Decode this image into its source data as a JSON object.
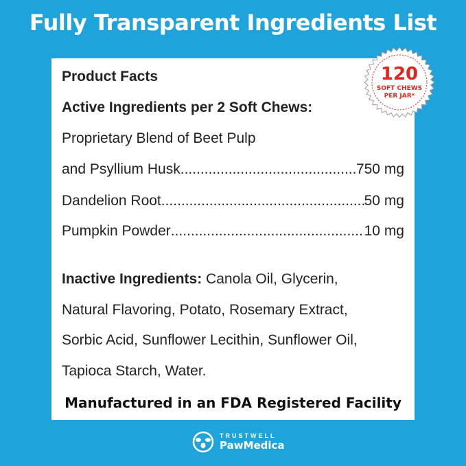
{
  "title": "Fully Transparent Ingredients List",
  "facts": {
    "heading": "Product Facts",
    "active_heading": "Active Ingredients per 2 Soft Chews:",
    "blend_line1": "Proprietary Blend of Beet Pulp",
    "items": [
      {
        "name": "and Psyllium Husk",
        "amount": "750 mg"
      },
      {
        "name": "Dandelion Root",
        "amount": "50 mg"
      },
      {
        "name": "Pumpkin Powder",
        "amount": "10 mg"
      }
    ],
    "inactive_label": "Inactive Ingredients:",
    "inactive_lines": [
      " Canola Oil, Glycerin,",
      "Natural Flavoring, Potato, Rosemary Extract,",
      "Sorbic Acid, Sunflower Lecithin, Sunflower Oil,",
      "Tapioca Starch, Water."
    ],
    "manufactured": "Manufactured in an FDA Registered Facility"
  },
  "badge": {
    "count": "120",
    "line1": "SOFT CHEWS",
    "line2": "PER JAR*",
    "color": "#e0261f"
  },
  "brand": {
    "top": "TRUSTWELL",
    "name": "PawMedica"
  },
  "colors": {
    "background": "#1ea3db",
    "card": "#ffffff"
  }
}
